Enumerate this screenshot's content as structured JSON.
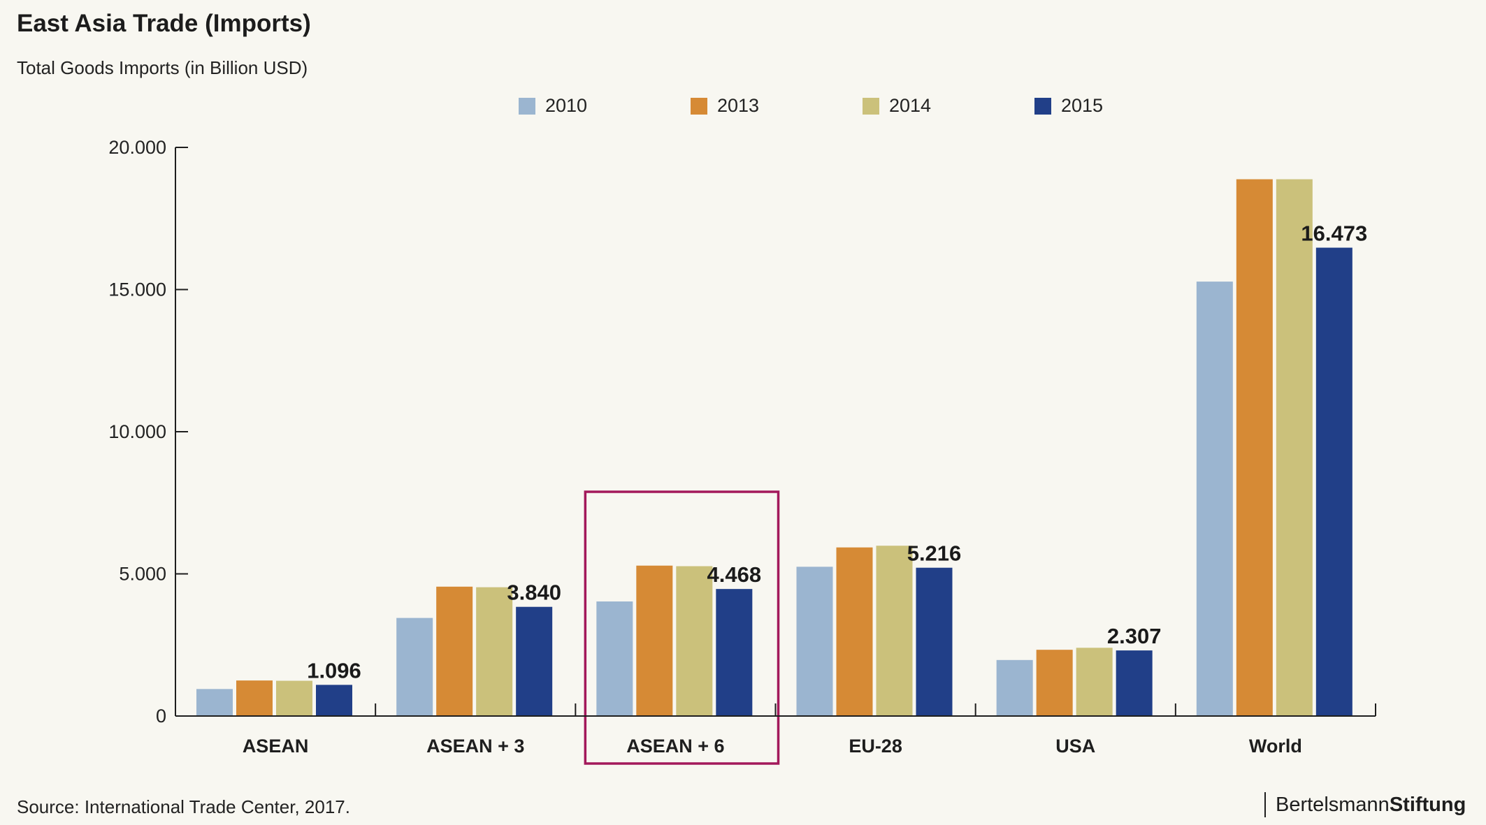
{
  "title": "East Asia Trade (Imports)",
  "subtitle": "Total Goods Imports (in Billion USD)",
  "source": "Source: International Trade Center, 2017.",
  "brand": {
    "part1": "Bertelsmann",
    "part2": "Stiftung"
  },
  "colors": {
    "2010": "#9bb5d0",
    "2013": "#d68a35",
    "2014": "#cbc17b",
    "2015": "#213f88",
    "highlight": "#a3195b",
    "axis": "#1e1e1e"
  },
  "chart_data": {
    "type": "bar",
    "categories": [
      "ASEAN",
      "ASEAN + 3",
      "ASEAN + 6",
      "EU-28",
      "USA",
      "World"
    ],
    "series": [
      {
        "name": "2010",
        "values": [
          950,
          3450,
          4030,
          5250,
          1970,
          15280
        ]
      },
      {
        "name": "2013",
        "values": [
          1250,
          4550,
          5290,
          5930,
          2330,
          18880
        ]
      },
      {
        "name": "2014",
        "values": [
          1240,
          4530,
          5270,
          5990,
          2400,
          18880
        ]
      },
      {
        "name": "2015",
        "values": [
          1096,
          3840,
          4468,
          5216,
          2307,
          16473
        ]
      }
    ],
    "data_labels": [
      "1.096",
      "3.840",
      "4.468",
      "5.216",
      "2.307",
      "16.473"
    ],
    "y_ticks": [
      {
        "value": 0,
        "label": "0"
      },
      {
        "value": 5000,
        "label": "5.000"
      },
      {
        "value": 10000,
        "label": "10.000"
      },
      {
        "value": 15000,
        "label": "15.000"
      },
      {
        "value": 20000,
        "label": "20.000"
      }
    ],
    "ylim": [
      0,
      20000
    ],
    "highlighted_category": "ASEAN + 6",
    "grid": false,
    "legend_position": "top-center",
    "xlabel": "",
    "ylabel": ""
  }
}
